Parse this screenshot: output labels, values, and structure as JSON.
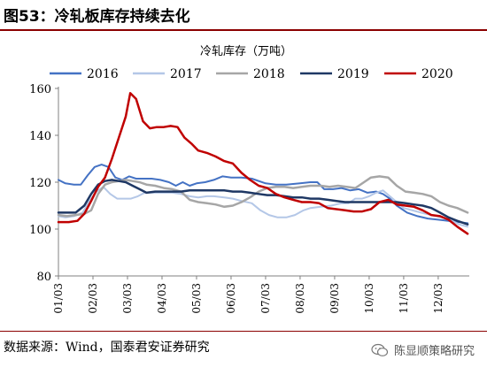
{
  "header": {
    "figure_title": "图53：冷轧板库存持续去化"
  },
  "footer": {
    "source": "数据来源：Wind，国泰君安证券研究",
    "watermark": "陈显顺策略研究",
    "watermark_icon": "wechat-icon"
  },
  "chart_data": {
    "type": "line",
    "title": "冷轧库存（万吨）",
    "xlabel": "",
    "ylabel": "",
    "ylim": [
      80,
      160
    ],
    "yticks": [
      80,
      100,
      120,
      140,
      160
    ],
    "xlim": [
      1,
      12.9
    ],
    "xticks": [
      "01/03",
      "02/03",
      "03/03",
      "04/03",
      "05/03",
      "06/03",
      "07/03",
      "08/03",
      "09/03",
      "10/03",
      "11/03",
      "12/03"
    ],
    "grid": false,
    "legend_position": "top",
    "series": [
      {
        "name": "2016",
        "color": "#4472c4",
        "width": 2,
        "points": [
          [
            1.0,
            121
          ],
          [
            1.2,
            119.5
          ],
          [
            1.45,
            119
          ],
          [
            1.65,
            119
          ],
          [
            1.85,
            123
          ],
          [
            2.05,
            126.5
          ],
          [
            2.25,
            127.5
          ],
          [
            2.45,
            126.5
          ],
          [
            2.65,
            122
          ],
          [
            2.85,
            121
          ],
          [
            3.05,
            122.5
          ],
          [
            3.25,
            121.5
          ],
          [
            3.45,
            121.5
          ],
          [
            3.7,
            121.5
          ],
          [
            3.95,
            121
          ],
          [
            4.2,
            120
          ],
          [
            4.4,
            118.5
          ],
          [
            4.6,
            120
          ],
          [
            4.8,
            118.5
          ],
          [
            5.0,
            119.5
          ],
          [
            5.25,
            120
          ],
          [
            5.5,
            121
          ],
          [
            5.75,
            122.5
          ],
          [
            6.0,
            122
          ],
          [
            6.3,
            122
          ],
          [
            6.6,
            121.5
          ],
          [
            7.0,
            119.5
          ],
          [
            7.3,
            119
          ],
          [
            7.6,
            119
          ],
          [
            8.0,
            119.5
          ],
          [
            8.3,
            120
          ],
          [
            8.5,
            120
          ],
          [
            8.7,
            117
          ],
          [
            8.95,
            117
          ],
          [
            9.2,
            117.5
          ],
          [
            9.45,
            116.5
          ],
          [
            9.7,
            117
          ],
          [
            9.95,
            115.5
          ],
          [
            10.2,
            116
          ],
          [
            10.4,
            115
          ],
          [
            10.6,
            113
          ],
          [
            10.8,
            110
          ],
          [
            11.1,
            107
          ],
          [
            11.4,
            105.5
          ],
          [
            11.7,
            104.5
          ],
          [
            12.0,
            104
          ],
          [
            12.3,
            103.5
          ],
          [
            12.6,
            103
          ],
          [
            12.85,
            102.5
          ]
        ]
      },
      {
        "name": "2017",
        "color": "#b4c7e7",
        "width": 2,
        "points": [
          [
            1.0,
            105.5
          ],
          [
            1.2,
            105
          ],
          [
            1.45,
            105.5
          ],
          [
            1.7,
            107
          ],
          [
            1.9,
            112
          ],
          [
            2.1,
            116
          ],
          [
            2.3,
            118
          ],
          [
            2.5,
            115
          ],
          [
            2.7,
            113
          ],
          [
            2.9,
            113
          ],
          [
            3.1,
            113
          ],
          [
            3.3,
            114
          ],
          [
            3.5,
            115.5
          ],
          [
            3.75,
            115.5
          ],
          [
            4.0,
            115.5
          ],
          [
            4.3,
            115.5
          ],
          [
            4.55,
            115
          ],
          [
            4.8,
            114
          ],
          [
            5.05,
            113.5
          ],
          [
            5.3,
            114
          ],
          [
            5.5,
            114
          ],
          [
            5.8,
            113.5
          ],
          [
            6.05,
            113
          ],
          [
            6.3,
            112
          ],
          [
            6.6,
            111
          ],
          [
            6.85,
            108
          ],
          [
            7.1,
            106
          ],
          [
            7.35,
            105
          ],
          [
            7.6,
            105
          ],
          [
            7.85,
            106
          ],
          [
            8.1,
            108
          ],
          [
            8.3,
            109
          ],
          [
            8.6,
            109.5
          ],
          [
            8.9,
            110
          ],
          [
            9.2,
            111
          ],
          [
            9.4,
            111
          ],
          [
            9.6,
            113
          ],
          [
            9.8,
            113
          ],
          [
            10.0,
            114
          ],
          [
            10.2,
            115.5
          ],
          [
            10.4,
            116.5
          ],
          [
            10.6,
            114
          ],
          [
            10.8,
            111.5
          ],
          [
            11.0,
            109
          ],
          [
            11.25,
            108
          ],
          [
            11.5,
            107
          ],
          [
            11.8,
            106
          ],
          [
            12.1,
            105
          ],
          [
            12.4,
            103.5
          ],
          [
            12.6,
            102
          ],
          [
            12.85,
            101
          ]
        ]
      },
      {
        "name": "2018",
        "color": "#a6a6a6",
        "width": 2.5,
        "points": [
          [
            1.0,
            106
          ],
          [
            1.25,
            105.5
          ],
          [
            1.5,
            106
          ],
          [
            1.75,
            106.5
          ],
          [
            1.95,
            108
          ],
          [
            2.15,
            115
          ],
          [
            2.35,
            119
          ],
          [
            2.55,
            120
          ],
          [
            2.75,
            120.5
          ],
          [
            2.95,
            121
          ],
          [
            3.15,
            120.5
          ],
          [
            3.35,
            120
          ],
          [
            3.55,
            119
          ],
          [
            3.8,
            118.5
          ],
          [
            4.05,
            117.5
          ],
          [
            4.3,
            117
          ],
          [
            4.55,
            116
          ],
          [
            4.8,
            112.5
          ],
          [
            5.05,
            111.5
          ],
          [
            5.3,
            111
          ],
          [
            5.55,
            110.5
          ],
          [
            5.8,
            109.5
          ],
          [
            6.05,
            110
          ],
          [
            6.3,
            111.5
          ],
          [
            6.55,
            113.5
          ],
          [
            6.8,
            116
          ],
          [
            7.05,
            117.5
          ],
          [
            7.3,
            118
          ],
          [
            7.55,
            118
          ],
          [
            7.8,
            117.5
          ],
          [
            8.05,
            118
          ],
          [
            8.3,
            118.5
          ],
          [
            8.6,
            118.5
          ],
          [
            8.85,
            118
          ],
          [
            9.1,
            118.5
          ],
          [
            9.35,
            118
          ],
          [
            9.6,
            117.5
          ],
          [
            9.85,
            120
          ],
          [
            10.05,
            122
          ],
          [
            10.3,
            122.5
          ],
          [
            10.55,
            122
          ],
          [
            10.8,
            118.5
          ],
          [
            11.05,
            116
          ],
          [
            11.3,
            115.5
          ],
          [
            11.55,
            115
          ],
          [
            11.8,
            114
          ],
          [
            12.05,
            111.5
          ],
          [
            12.3,
            110
          ],
          [
            12.55,
            109
          ],
          [
            12.85,
            107
          ]
        ]
      },
      {
        "name": "2019",
        "color": "#1f3864",
        "width": 2.5,
        "points": [
          [
            1.0,
            107
          ],
          [
            1.25,
            107
          ],
          [
            1.5,
            107
          ],
          [
            1.75,
            110
          ],
          [
            1.95,
            115
          ],
          [
            2.15,
            119
          ],
          [
            2.35,
            120.5
          ],
          [
            2.55,
            121
          ],
          [
            2.75,
            120.5
          ],
          [
            2.95,
            120
          ],
          [
            3.15,
            118.5
          ],
          [
            3.35,
            117
          ],
          [
            3.55,
            115.5
          ],
          [
            3.8,
            116
          ],
          [
            4.05,
            116
          ],
          [
            4.3,
            116
          ],
          [
            4.55,
            116
          ],
          [
            4.8,
            116.5
          ],
          [
            5.05,
            116.5
          ],
          [
            5.3,
            116.5
          ],
          [
            5.55,
            116.5
          ],
          [
            5.8,
            116.5
          ],
          [
            6.05,
            116
          ],
          [
            6.3,
            116
          ],
          [
            6.55,
            115.5
          ],
          [
            6.8,
            115
          ],
          [
            7.05,
            114.5
          ],
          [
            7.3,
            114.5
          ],
          [
            7.55,
            114
          ],
          [
            7.8,
            113.5
          ],
          [
            8.05,
            113.5
          ],
          [
            8.3,
            113
          ],
          [
            8.55,
            113
          ],
          [
            8.8,
            112.5
          ],
          [
            9.05,
            112
          ],
          [
            9.3,
            111.5
          ],
          [
            9.55,
            111.5
          ],
          [
            9.8,
            111.5
          ],
          [
            10.05,
            111.5
          ],
          [
            10.3,
            111.5
          ],
          [
            10.55,
            111.5
          ],
          [
            10.8,
            111.5
          ],
          [
            11.05,
            111
          ],
          [
            11.3,
            110.5
          ],
          [
            11.55,
            110
          ],
          [
            11.8,
            109
          ],
          [
            12.05,
            107
          ],
          [
            12.3,
            105
          ],
          [
            12.55,
            103.5
          ],
          [
            12.85,
            102
          ]
        ]
      },
      {
        "name": "2020",
        "color": "#c00000",
        "width": 2.5,
        "points": [
          [
            1.0,
            103
          ],
          [
            1.3,
            103
          ],
          [
            1.55,
            103.5
          ],
          [
            1.75,
            106.5
          ],
          [
            1.95,
            112
          ],
          [
            2.15,
            118
          ],
          [
            2.35,
            122
          ],
          [
            2.55,
            130
          ],
          [
            2.75,
            139
          ],
          [
            2.95,
            148
          ],
          [
            3.08,
            158
          ],
          [
            3.25,
            155.5
          ],
          [
            3.45,
            146
          ],
          [
            3.65,
            143
          ],
          [
            3.85,
            143.5
          ],
          [
            4.05,
            143.5
          ],
          [
            4.25,
            144
          ],
          [
            4.45,
            143.5
          ],
          [
            4.65,
            139
          ],
          [
            4.85,
            136.5
          ],
          [
            5.05,
            133.5
          ],
          [
            5.3,
            132.5
          ],
          [
            5.55,
            131
          ],
          [
            5.8,
            129
          ],
          [
            6.05,
            128
          ],
          [
            6.3,
            124
          ],
          [
            6.55,
            121
          ],
          [
            6.8,
            118.5
          ],
          [
            7.05,
            117.5
          ],
          [
            7.3,
            115
          ],
          [
            7.55,
            113.5
          ],
          [
            7.8,
            112.5
          ],
          [
            8.05,
            111.5
          ],
          [
            8.3,
            111.5
          ],
          [
            8.55,
            111
          ],
          [
            8.8,
            109
          ],
          [
            9.05,
            108.5
          ],
          [
            9.3,
            108
          ],
          [
            9.55,
            107.5
          ],
          [
            9.8,
            107.5
          ],
          [
            10.05,
            108.5
          ],
          [
            10.3,
            111.5
          ],
          [
            10.55,
            112.5
          ],
          [
            10.8,
            110.5
          ],
          [
            11.05,
            110
          ],
          [
            11.3,
            109.5
          ],
          [
            11.55,
            108
          ],
          [
            11.8,
            106
          ],
          [
            12.05,
            105.5
          ],
          [
            12.3,
            104
          ],
          [
            12.55,
            101
          ],
          [
            12.85,
            98
          ]
        ]
      }
    ]
  }
}
